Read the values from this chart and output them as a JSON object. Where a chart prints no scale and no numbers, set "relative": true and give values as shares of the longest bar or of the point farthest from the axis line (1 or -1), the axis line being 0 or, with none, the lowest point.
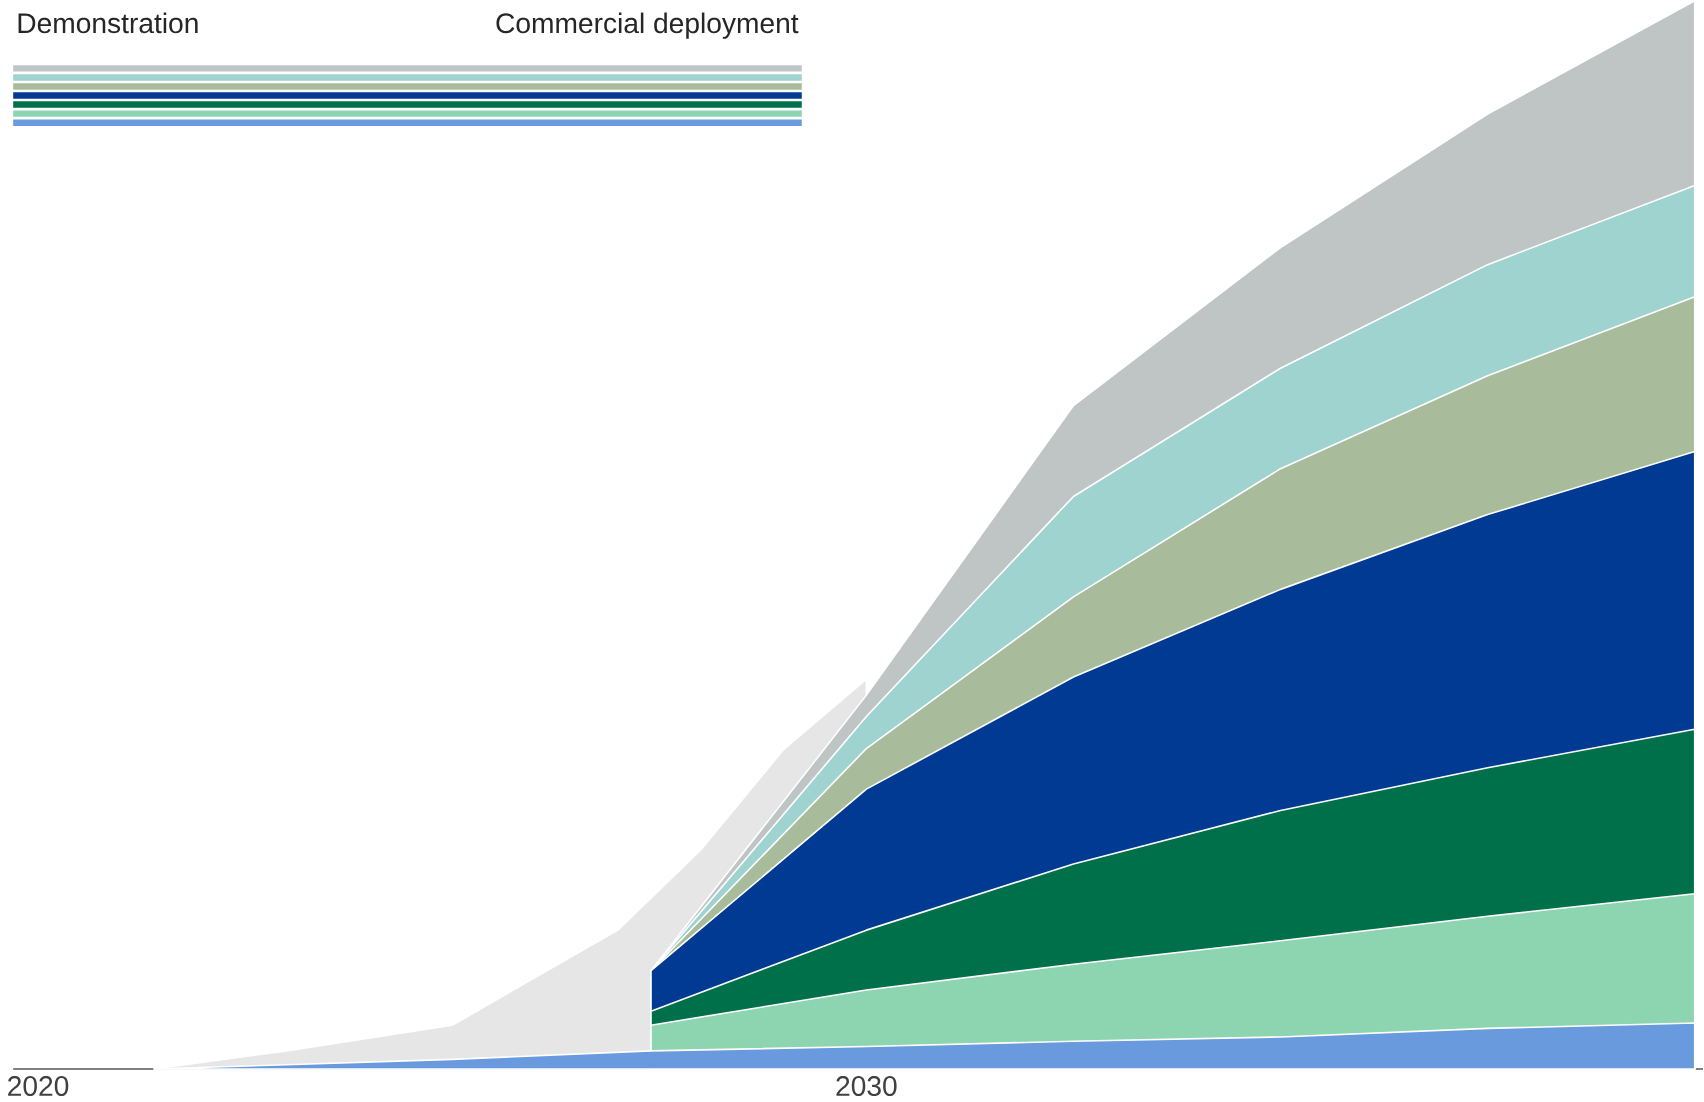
{
  "chart_data": {
    "type": "area",
    "relative": true,
    "annotations": [
      "Demonstration",
      "Commercial deployment"
    ],
    "x": [
      2021.4,
      2023,
      2025,
      2027.4,
      2030,
      2032.5,
      2035,
      2037.5,
      2040
    ],
    "xlim": [
      2019.7,
      2040.1
    ],
    "xticks": [
      2020,
      2030
    ],
    "series": [
      {
        "color": "#e6e6e6",
        "x": [
          2021.4,
          2023,
          2025,
          2027,
          2028,
          2029,
          2030
        ],
        "values": [
          0,
          0.017,
          0.041,
          0.13,
          0.205,
          0.299,
          0.365
        ]
      },
      {
        "color": "#bfc5c5",
        "values": [
          null,
          null,
          null,
          0.092,
          0.35,
          0.621,
          0.769,
          0.894,
          1.0
        ]
      },
      {
        "color": "#9fd3cf",
        "values": [
          null,
          null,
          null,
          0.092,
          0.33,
          0.536,
          0.656,
          0.753,
          0.827
        ]
      },
      {
        "color": "#a8bb9b",
        "values": [
          null,
          null,
          null,
          0.092,
          0.3,
          0.442,
          0.562,
          0.649,
          0.723
        ]
      },
      {
        "color": "#003a93",
        "values": [
          null,
          null,
          null,
          0.092,
          0.262,
          0.367,
          0.449,
          0.519,
          0.578
        ]
      },
      {
        "color": "#00704a",
        "values": [
          null,
          null,
          null,
          0.054,
          0.13,
          0.192,
          0.242,
          0.282,
          0.318
        ]
      },
      {
        "color": "#8dd4b0",
        "values": [
          null,
          null,
          null,
          0.041,
          0.074,
          0.098,
          0.12,
          0.143,
          0.164
        ]
      },
      {
        "color": "#6a9ade",
        "values": [
          0,
          0.004,
          0.009,
          0.017,
          0.021,
          0.026,
          0.03,
          0.038,
          0.043
        ]
      }
    ]
  }
}
